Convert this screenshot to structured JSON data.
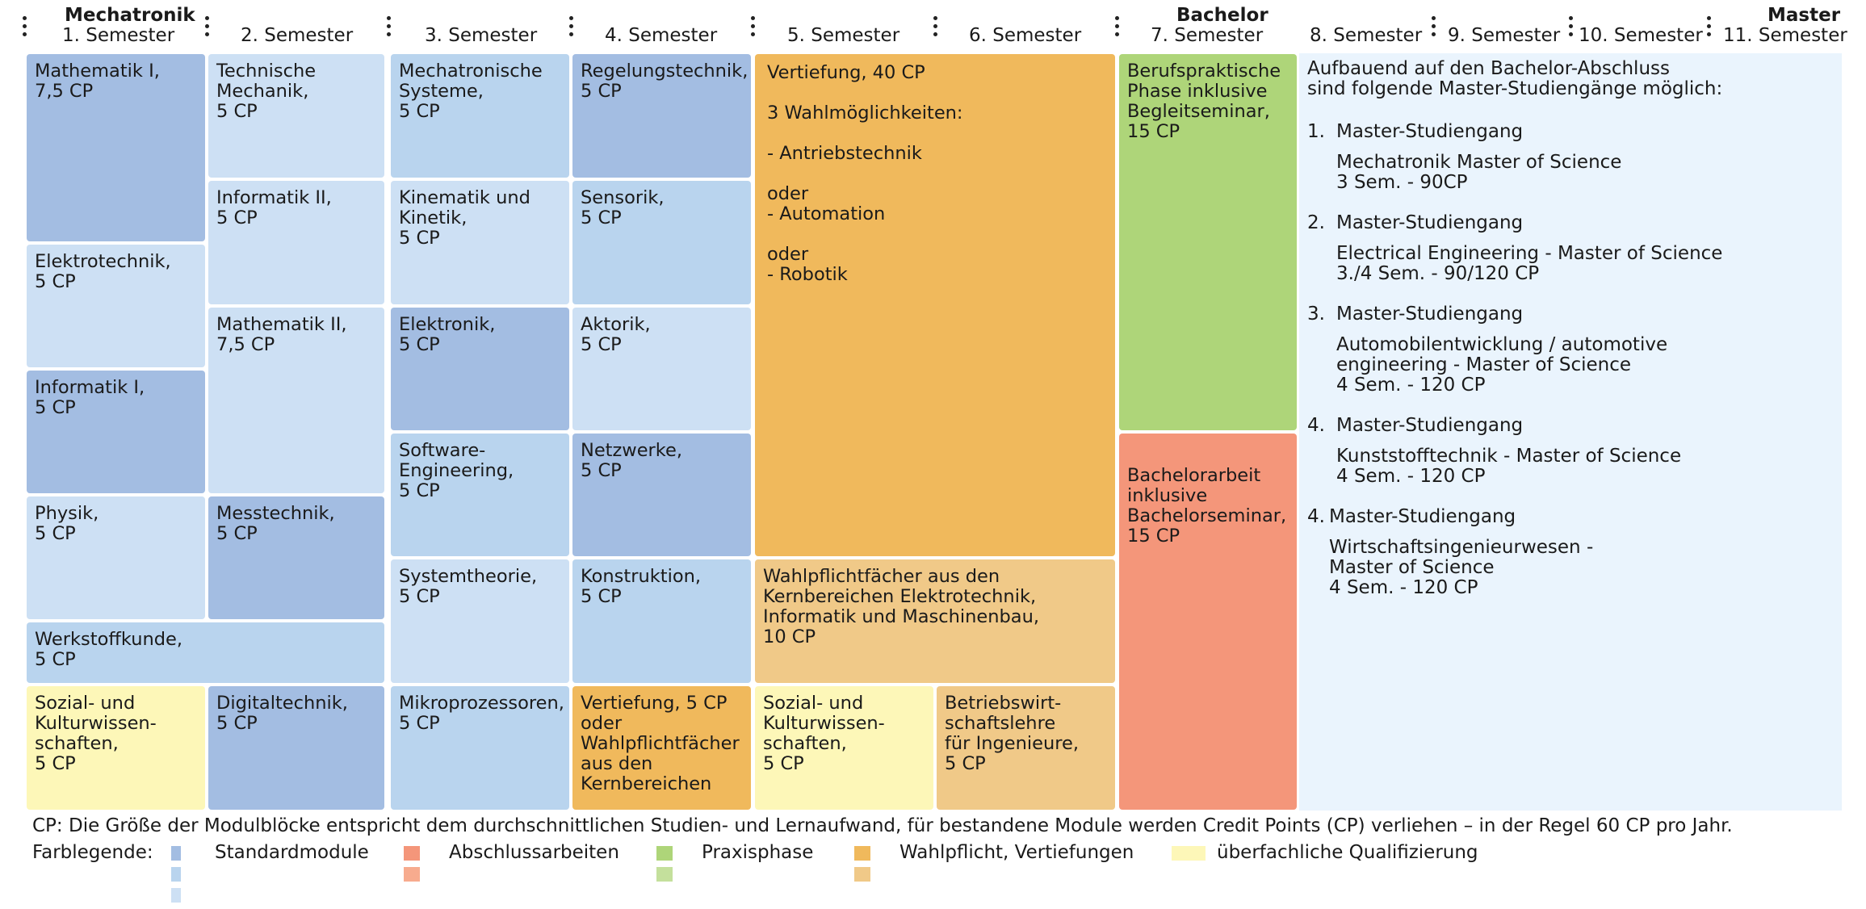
{
  "header": {
    "mechatronik": "Mechatronik",
    "bachelor": "Bachelor",
    "master": "Master",
    "semesters": [
      "1. Semester",
      "2. Semester",
      "3. Semester",
      "4. Semester",
      "5. Semester",
      "6. Semester",
      "7. Semester",
      "8. Semester",
      "9. Semester",
      "10. Semester",
      "11. Semester"
    ]
  },
  "colors": {
    "standard_dark": "#a3bde2",
    "standard_mid": "#b9d4ee",
    "standard_light": "#cde0f4",
    "thesis": "#f4967a",
    "practice": "#aed579",
    "elective_dark": "#f0b95c",
    "elective_light": "#f0c988",
    "general": "#fdf7b8",
    "master_panel": "#eaf4fd"
  },
  "modules": {
    "mathe1": "Mathematik I,\n7,5 CP",
    "elektrotechnik": "Elektrotechnik,\n5 CP",
    "informatik1": "Informatik I,\n5 CP",
    "physik": "Physik,\n5 CP",
    "werkstoffkunde": "Werkstoffkunde,\n5 CP",
    "sozial1": "Sozial- und\nKulturwissen-\nschaften,\n5 CP",
    "technische_mechanik": "Technische\nMechanik,\n5 CP",
    "informatik2": "Informatik II,\n5 CP",
    "mathe2": "Mathematik II,\n7,5 CP",
    "messtechnik": "Messtechnik,\n5 CP",
    "digitaltechnik": "Digitaltechnik,\n5 CP",
    "mechatronische_systeme": "Mechatronische\nSysteme,\n5 CP",
    "kinematik": "Kinematik und\nKinetik,\n5 CP",
    "elektronik": "Elektronik,\n5 CP",
    "software": "Software-\nEngineering,\n5 CP",
    "systemtheorie": "Systemtheorie,\n5 CP",
    "mikroprozessoren": "Mikroprozessoren,\n5 CP",
    "regelungstechnik": "Regelungstechnik,\n5 CP",
    "sensorik": "Sensorik,\n5 CP",
    "aktorik": "Aktorik,\n5 CP",
    "netzwerke": "Netzwerke,\n5 CP",
    "konstruktion": "Konstruktion,\n5 CP",
    "vertiefung5": "Vertiefung, 5 CP\noder\nWahlpflichtfächer\naus den\nKernbereichen",
    "vertiefung40": "Vertiefung, 40 CP\n\n3 Wahlmöglichkeiten:\n\n- Antriebstechnik\n\n  oder\n- Automation\n\n  oder\n- Robotik",
    "wahlpflicht": "Wahlpflichtfächer aus den\nKernbereichen Elektrotechnik,\nInformatik und Maschinenbau,\n10 CP",
    "sozial2": "Sozial- und\nKulturwissen-\nschaften,\n5 CP",
    "bwl": "Betriebswirt-\nschaftslehre\nfür Ingenieure,\n5 CP",
    "praxis": "Berufspraktische\nPhase inklusive\nBegleitseminar,\n15 CP",
    "bachelorarbeit": "Bachelorarbeit\ninklusive\nBachelorseminar,\n15 CP"
  },
  "master_info": {
    "intro": "Aufbauend auf den Bachelor-Abschluss\nsind folgende Master-Studiengänge möglich:",
    "items": [
      {
        "num": "1.",
        "title": "Master-Studiengang",
        "desc": "Mechatronik Master of Science\n3 Sem. - 90CP"
      },
      {
        "num": "2.",
        "title": "Master-Studiengang",
        "desc": "Electrical Engineering - Master of Science\n3./4 Sem. - 90/120 CP"
      },
      {
        "num": "3.",
        "title": "Master-Studiengang",
        "desc": "Automobilentwicklung / automotive\nengineering - Master of Science\n4 Sem. - 120 CP"
      },
      {
        "num": "4.",
        "title": "Master-Studiengang",
        "desc": "Kunststofftechnik - Master of Science\n4 Sem. - 120 CP"
      },
      {
        "num": "4.",
        "title": "Master-Studiengang",
        "desc": "Wirtschaftsingenieurwesen -\nMaster of Science\n4 Sem. - 120 CP"
      }
    ]
  },
  "footer": {
    "cp_note": "CP: Die Größe der Modulblöcke entspricht dem durchschnittlichen Studien- und Lernaufwand, für bestandene Module werden Credit Points (CP) verliehen – in der Regel 60 CP pro Jahr.",
    "legend_title": "Farblegende:",
    "legend": [
      "Standardmodule",
      "Abschlussarbeiten",
      "Praxisphase",
      "Wahlpflicht, Vertiefungen",
      "überfachliche Qualifizierung"
    ]
  }
}
